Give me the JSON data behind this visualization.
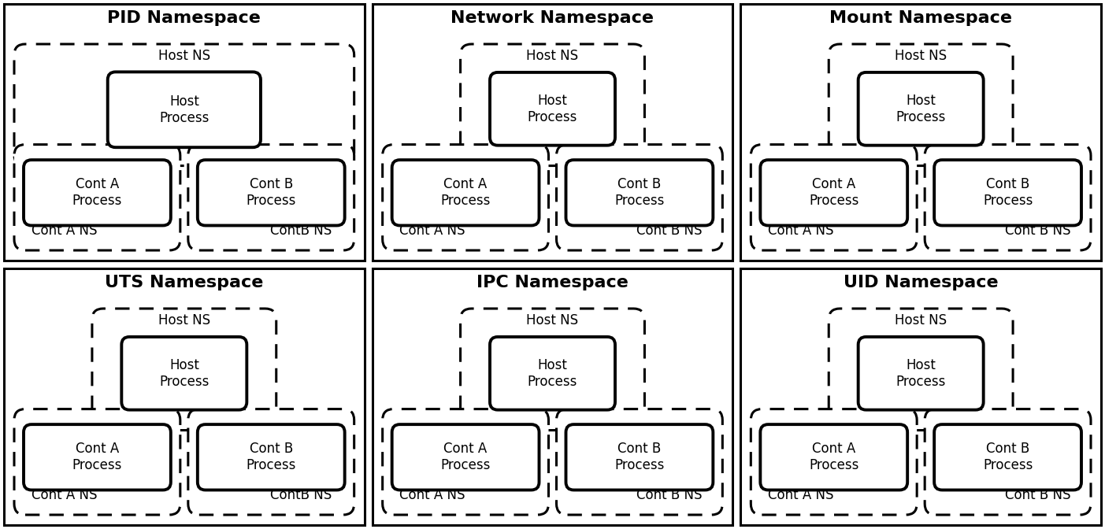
{
  "panels": [
    {
      "title": "PID Namespace",
      "host_ns_label": "Host NS",
      "cont_a_label": "Cont A NS",
      "cont_b_label": "ContB NS",
      "pid_style": true
    },
    {
      "title": "Network Namespace",
      "host_ns_label": "Host NS",
      "cont_a_label": "Cont A NS",
      "cont_b_label": "Cont B NS",
      "pid_style": false
    },
    {
      "title": "Mount Namespace",
      "host_ns_label": "Host NS",
      "cont_a_label": "Cont A NS",
      "cont_b_label": "Cont B NS",
      "pid_style": false
    },
    {
      "title": "UTS Namespace",
      "host_ns_label": "Host NS",
      "cont_a_label": "Cont A NS",
      "cont_b_label": "ContB NS",
      "pid_style": false
    },
    {
      "title": "IPC Namespace",
      "host_ns_label": "Host NS",
      "cont_a_label": "Cont A NS",
      "cont_b_label": "Cont B NS",
      "pid_style": false
    },
    {
      "title": "UID Namespace",
      "host_ns_label": "Host NS",
      "cont_a_label": "Cont A NS",
      "cont_b_label": "Cont B NS",
      "pid_style": false
    }
  ],
  "title_fontsize": 16,
  "ns_label_fontsize": 12,
  "process_fontsize": 12
}
